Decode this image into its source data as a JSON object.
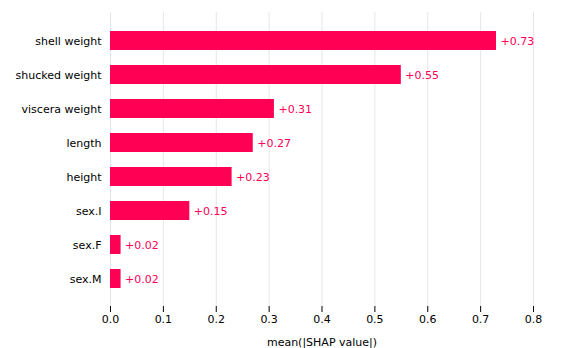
{
  "chart_data": {
    "type": "bar",
    "orientation": "horizontal",
    "categories": [
      "sex.M",
      "sex.F",
      "sex.I",
      "height",
      "length",
      "viscera weight",
      "shucked weight",
      "shell weight"
    ],
    "values": [
      0.02,
      0.02,
      0.15,
      0.23,
      0.27,
      0.31,
      0.55,
      0.73
    ],
    "value_labels": [
      "+0.02",
      "+0.02",
      "+0.15",
      "+0.23",
      "+0.27",
      "+0.31",
      "+0.55",
      "+0.73"
    ],
    "data_labels": true,
    "color": "#FF0055",
    "xlabel": "mean(|SHAP value|)",
    "xlim": [
      0,
      0.8
    ],
    "xticks": [
      {
        "value": 0,
        "label": "0.0"
      },
      0.1,
      0.2,
      0.3,
      0.4,
      0.5,
      0.6,
      0.7,
      0.8
    ],
    "grid": true
  }
}
